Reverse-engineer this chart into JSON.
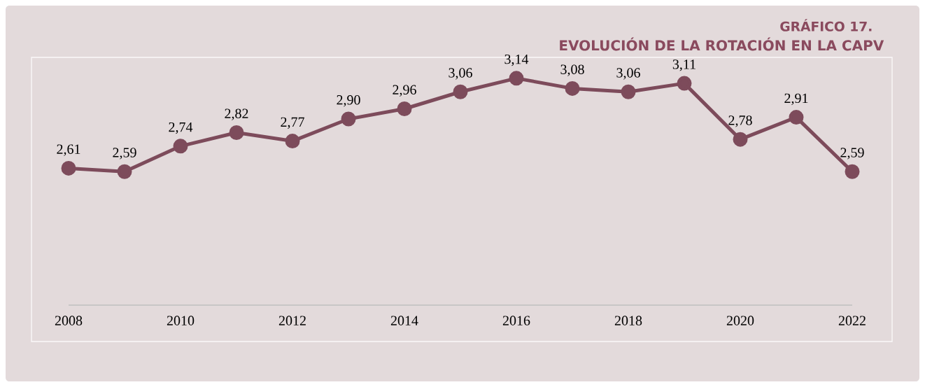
{
  "chart_data": {
    "type": "line",
    "title": "GRÁFICO 17.",
    "subtitle": "EVOLUCIÓN DE LA ROTACIÓN EN LA CAPV",
    "categories": [
      "2008",
      null,
      "2010",
      null,
      "2012",
      null,
      "2014",
      null,
      "2016",
      null,
      "2018",
      null,
      "2020",
      null,
      "2022"
    ],
    "values": [
      2.61,
      2.59,
      2.74,
      2.82,
      2.77,
      2.9,
      2.96,
      3.06,
      3.14,
      3.08,
      3.06,
      3.11,
      2.78,
      2.91,
      2.59
    ],
    "value_labels": [
      "2,61",
      "2,59",
      "2,74",
      "2,82",
      "2,77",
      "2,90",
      "2,96",
      "3,06",
      "3,14",
      "3,08",
      "3,06",
      "3,11",
      "2,78",
      "2,91",
      "2,59"
    ],
    "color": "#7d4b5b",
    "marker": "circle",
    "line_style": "solid",
    "grid": false
  }
}
